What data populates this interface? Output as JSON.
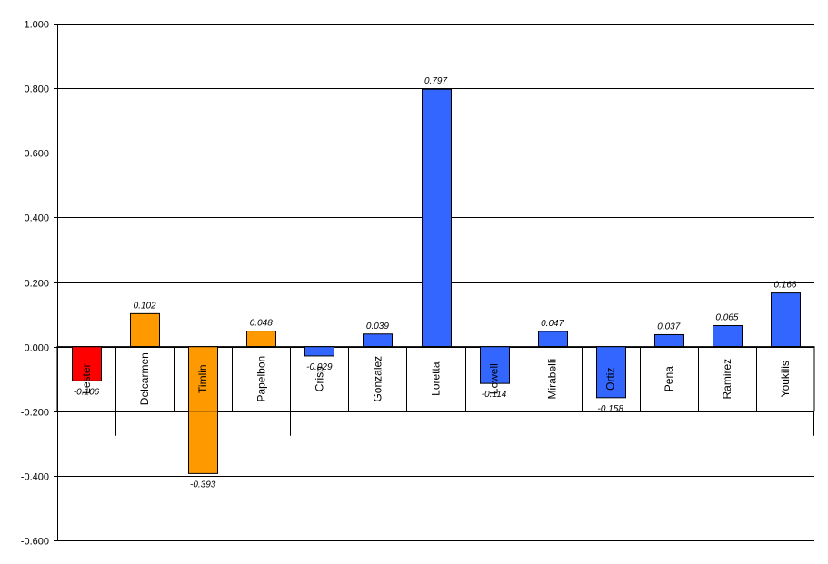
{
  "chart_data": {
    "type": "bar",
    "categories": [
      "Lester",
      "Delcarmen",
      "Timlin",
      "Papelbon",
      "Crisp",
      "Gonzalez",
      "Loretta",
      "Lowell",
      "Mirabelli",
      "Ortiz",
      "Pena",
      "Ramirez",
      "Youkilis"
    ],
    "values": [
      -0.106,
      0.102,
      -0.393,
      0.048,
      -0.029,
      0.039,
      0.797,
      -0.114,
      0.047,
      -0.158,
      0.037,
      0.065,
      0.166
    ],
    "data_labels": [
      "-0.106",
      "0.102",
      "-0.393",
      "0.048",
      "-0.029",
      "0.039",
      "0.797",
      "-0.114",
      "0.047",
      "-0.158",
      "0.037",
      "0.065",
      "0.166"
    ],
    "colors": [
      "#ff0000",
      "#ff9900",
      "#ff9900",
      "#ff9900",
      "#3366ff",
      "#3366ff",
      "#3366ff",
      "#3366ff",
      "#3366ff",
      "#3366ff",
      "#3366ff",
      "#3366ff",
      "#3366ff"
    ],
    "ylim": [
      -0.6,
      1.0
    ],
    "y_ticks": [
      "1.000",
      "0.800",
      "0.600",
      "0.400",
      "0.200",
      "0.000",
      "-0.200",
      "-0.400",
      "-0.600"
    ],
    "title": "",
    "xlabel": "",
    "ylabel": "",
    "grid": true,
    "legend": "none"
  }
}
